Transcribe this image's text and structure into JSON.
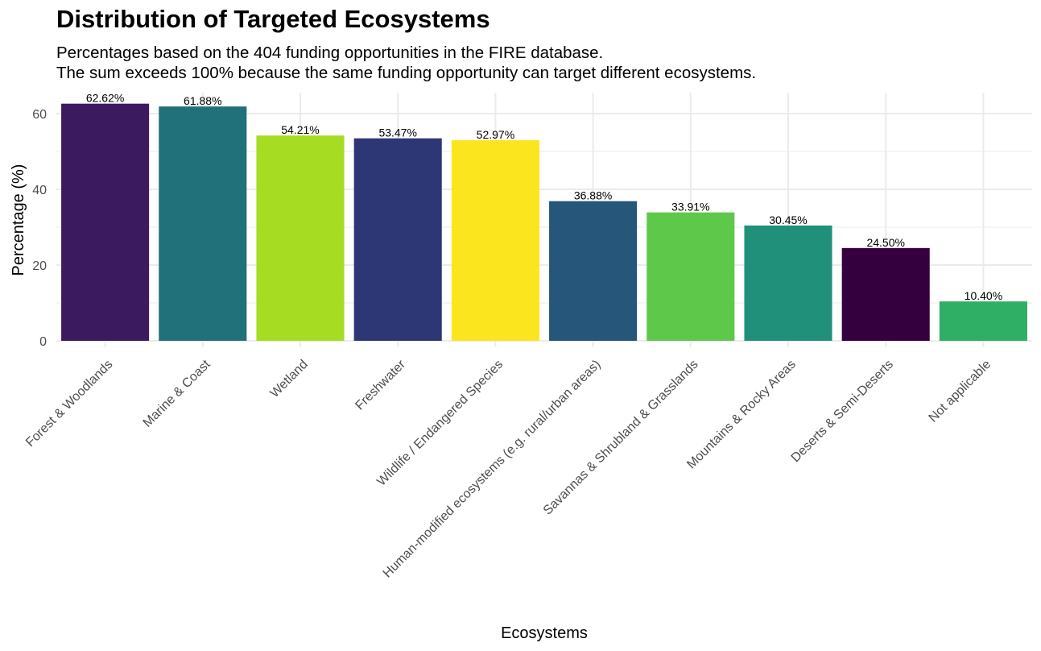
{
  "chart_data": {
    "type": "bar",
    "title": "Distribution of Targeted Ecosystems",
    "subtitle": [
      "Percentages based on the 404 funding opportunities in the FIRE database.",
      "The sum exceeds 100% because the same funding opportunity can target different ecosystems."
    ],
    "xlabel": "Ecosystems",
    "ylabel": "Percentage (%)",
    "ylim": [
      0,
      65
    ],
    "yticks": [
      0,
      20,
      40,
      60
    ],
    "grid": true,
    "legend": "none",
    "categories": [
      "Forest & Woodlands",
      "Marine & Coast",
      "Wetland",
      "Freshwater",
      "Wildlife / Endangered Species",
      "Human-modified ecosystems (e.g. rural/urban areas)",
      "Savannas & Shrubland & Grasslands",
      "Mountains & Rocky Areas",
      "Deserts & Semi-Deserts",
      "Not applicable"
    ],
    "values": [
      62.62,
      61.88,
      54.21,
      53.47,
      52.97,
      36.88,
      33.91,
      30.45,
      24.5,
      10.4
    ],
    "data_labels": [
      "62.62%",
      "61.88%",
      "54.21%",
      "53.47%",
      "52.97%",
      "36.88%",
      "33.91%",
      "30.45%",
      "24.50%",
      "10.40%"
    ],
    "colors": [
      "#3b1a5f",
      "#21717b",
      "#a6dc22",
      "#2e3775",
      "#fbe51f",
      "#26567a",
      "#5ec84b",
      "#20907a",
      "#35003e",
      "#2fae66"
    ]
  }
}
